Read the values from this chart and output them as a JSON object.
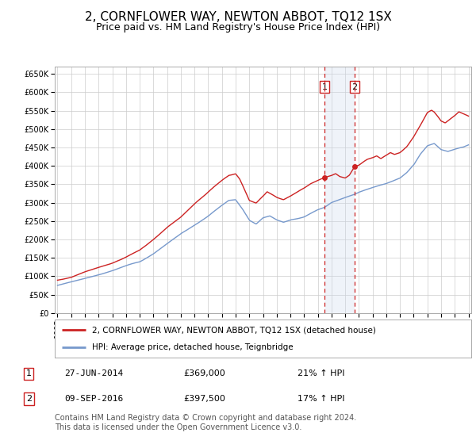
{
  "title": "2, CORNFLOWER WAY, NEWTON ABBOT, TQ12 1SX",
  "subtitle": "Price paid vs. HM Land Registry's House Price Index (HPI)",
  "ylim": [
    0,
    670000
  ],
  "yticks": [
    0,
    50000,
    100000,
    150000,
    200000,
    250000,
    300000,
    350000,
    400000,
    450000,
    500000,
    550000,
    600000,
    650000
  ],
  "sale1_date": 2014.49,
  "sale1_price": 369000,
  "sale2_date": 2016.69,
  "sale2_price": 397500,
  "legend_line1": "2, CORNFLOWER WAY, NEWTON ABBOT, TQ12 1SX (detached house)",
  "legend_line2": "HPI: Average price, detached house, Teignbridge",
  "table_row1": [
    "1",
    "27-JUN-2014",
    "£369,000",
    "21% ↑ HPI"
  ],
  "table_row2": [
    "2",
    "09-SEP-2016",
    "£397,500",
    "17% ↑ HPI"
  ],
  "footnote": "Contains HM Land Registry data © Crown copyright and database right 2024.\nThis data is licensed under the Open Government Licence v3.0.",
  "hpi_color": "#7799cc",
  "price_color": "#cc2222",
  "background_color": "#ffffff",
  "shaded_color": "#ccd9ee",
  "vline_color": "#cc2222",
  "grid_color": "#cccccc",
  "title_fontsize": 11,
  "subtitle_fontsize": 9,
  "tick_fontsize": 7,
  "note_fontsize": 7
}
